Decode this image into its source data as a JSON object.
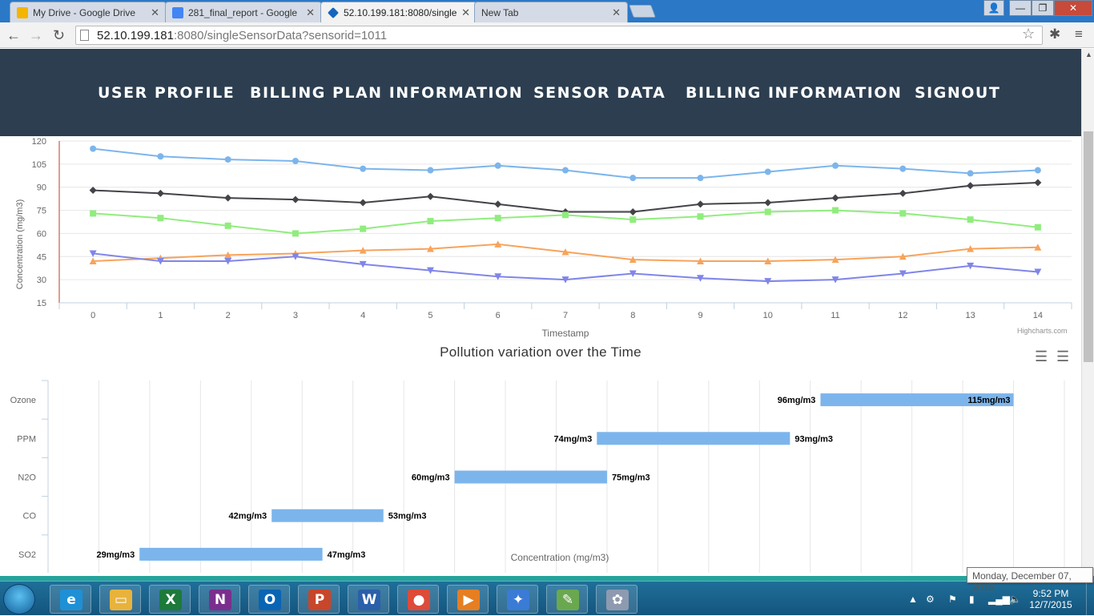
{
  "browser": {
    "tabs": [
      {
        "title": "My Drive - Google Drive",
        "fav_color": "#f4b400"
      },
      {
        "title": "281_final_report - Google",
        "fav_color": "#4285f4"
      },
      {
        "title": "52.10.199.181:8080/single",
        "fav_color": "#1565c0"
      },
      {
        "title": "New Tab",
        "fav_color": ""
      }
    ],
    "url_host": "52.10.199.181",
    "url_path": ":8080/singleSensorData?sensorid=1011"
  },
  "nav": {
    "items": [
      "USER PROFILE",
      "BILLING PLAN INFORMATION",
      "SENSOR DATA",
      "BILLING INFORMATION",
      "SIGNOUT"
    ]
  },
  "credit": "Highcharts.com",
  "chart_data": [
    {
      "type": "line",
      "title": "",
      "xlabel": "Timestamp",
      "ylabel": "Concentration (mg/m3)",
      "x": [
        0,
        1,
        2,
        3,
        4,
        5,
        6,
        7,
        8,
        9,
        10,
        11,
        12,
        13,
        14
      ],
      "yticks": [
        15,
        30,
        45,
        60,
        75,
        90,
        105,
        120
      ],
      "ylim": [
        15,
        120
      ],
      "legend_position": "bottom-center",
      "grid": true,
      "series": [
        {
          "name": "Ozone",
          "color": "#7cb5ec",
          "marker": "circle",
          "values": [
            115,
            110,
            108,
            107,
            102,
            101,
            104,
            101,
            96,
            96,
            100,
            104,
            102,
            99,
            101
          ]
        },
        {
          "name": "PPM",
          "color": "#434348",
          "marker": "diamond",
          "values": [
            88,
            86,
            83,
            82,
            80,
            84,
            79,
            74,
            74,
            79,
            80,
            83,
            86,
            91,
            93
          ]
        },
        {
          "name": "N2O",
          "color": "#90ed7d",
          "marker": "square",
          "values": [
            73,
            70,
            65,
            60,
            63,
            68,
            70,
            72,
            69,
            71,
            74,
            75,
            73,
            69,
            64
          ]
        },
        {
          "name": "CO",
          "color": "#f7a35c",
          "marker": "triangle",
          "values": [
            42,
            44,
            46,
            47,
            49,
            50,
            53,
            48,
            43,
            42,
            42,
            43,
            45,
            50,
            51
          ]
        },
        {
          "name": "SO2",
          "color": "#8085e9",
          "marker": "triangle-down",
          "values": [
            47,
            42,
            42,
            45,
            40,
            36,
            32,
            30,
            34,
            31,
            29,
            30,
            34,
            39,
            35
          ]
        }
      ]
    },
    {
      "type": "bar",
      "title": "Pollution variation over the Time",
      "xlabel": "Concentration (mg/m3)",
      "categories": [
        "Ozone",
        "PPM",
        "N2O",
        "CO",
        "SO2"
      ],
      "ranges": [
        [
          96,
          115
        ],
        [
          74,
          93
        ],
        [
          60,
          75
        ],
        [
          42,
          53
        ],
        [
          29,
          47
        ]
      ],
      "low_labels": [
        "96mg/m3",
        "74mg/m3",
        "60mg/m3",
        "42mg/m3",
        "29mg/m3"
      ],
      "high_labels": [
        "115mg/m3",
        "93mg/m3",
        "75mg/m3",
        "53mg/m3",
        "47mg/m3"
      ],
      "xlim": [
        20,
        120
      ],
      "xticks": [
        20,
        25,
        30,
        35,
        40,
        45,
        50,
        55,
        60,
        65,
        70,
        75,
        80,
        85,
        90,
        95,
        100,
        105,
        110,
        115,
        120
      ],
      "color": "#7cb5ec",
      "grid": true
    }
  ],
  "taskbar": {
    "apps": [
      {
        "name": "ie",
        "glyph": "e",
        "color": "#1e90d6"
      },
      {
        "name": "explorer",
        "glyph": "▭",
        "color": "#e8b33c"
      },
      {
        "name": "excel",
        "glyph": "X",
        "color": "#1d7a3a"
      },
      {
        "name": "onenote",
        "glyph": "N",
        "color": "#7a2f8e"
      },
      {
        "name": "outlook",
        "glyph": "O",
        "color": "#0a64b4"
      },
      {
        "name": "powerpoint",
        "glyph": "P",
        "color": "#c8462a"
      },
      {
        "name": "word",
        "glyph": "W",
        "color": "#2b5faa"
      },
      {
        "name": "chrome",
        "glyph": "●",
        "color": "#dd4b39"
      },
      {
        "name": "media",
        "glyph": "▶",
        "color": "#e67e22"
      },
      {
        "name": "safari",
        "glyph": "✦",
        "color": "#3a7bd5"
      },
      {
        "name": "notes",
        "glyph": "✎",
        "color": "#6aa84f"
      },
      {
        "name": "paint",
        "glyph": "✿",
        "color": "#8e9aaf"
      }
    ],
    "time": "9:52 PM",
    "date": "12/7/2015",
    "tooltip": "Monday, December 07, 2015"
  }
}
